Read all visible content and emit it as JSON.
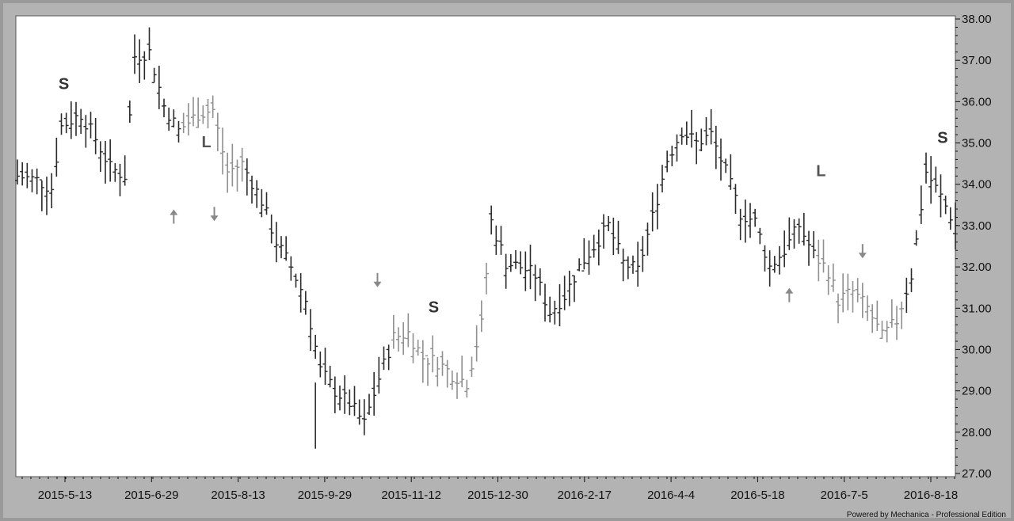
{
  "footer": "Powered by Mechanica - Professional Edition",
  "chart_data": {
    "type": "bar",
    "subtype": "ohlc-price-bars",
    "title": "",
    "xlabel": "",
    "ylabel": "",
    "ylim": [
      27.0,
      38.0
    ],
    "y_ticks": [
      "27.00",
      "28.00",
      "29.00",
      "30.00",
      "31.00",
      "32.00",
      "33.00",
      "34.00",
      "35.00",
      "36.00",
      "37.00",
      "38.00"
    ],
    "x_ticks": [
      "2015-5-13",
      "2015-6-29",
      "2015-8-13",
      "2015-9-29",
      "2015-11-12",
      "2015-12-30",
      "2016-2-17",
      "2016-4-4",
      "2016-5-18",
      "2016-7-5",
      "2016-8-18"
    ],
    "grid": false,
    "colors": {
      "dark_bars": "#2a2a2a",
      "light_bars": "#8f8f8f",
      "plot_bg": "#ffffff",
      "frame": "#b3b3b3"
    },
    "price_path": [
      [
        0,
        34.2
      ],
      [
        4,
        34.1
      ],
      [
        7,
        33.9
      ],
      [
        9,
        35.4
      ],
      [
        13,
        35.7
      ],
      [
        16,
        35.1
      ],
      [
        19,
        34.4
      ],
      [
        22,
        34.2
      ],
      [
        24,
        37.1
      ],
      [
        27,
        37.2
      ],
      [
        30,
        35.9
      ],
      [
        33,
        35.3
      ],
      [
        37,
        35.7
      ],
      [
        40,
        35.8
      ],
      [
        43,
        34.3
      ],
      [
        46,
        34.5
      ],
      [
        50,
        33.6
      ],
      [
        53,
        32.6
      ],
      [
        56,
        32.0
      ],
      [
        59,
        31.2
      ],
      [
        62,
        29.5
      ],
      [
        65,
        29.0
      ],
      [
        68,
        28.7
      ],
      [
        71,
        28.2
      ],
      [
        74,
        29.3
      ],
      [
        77,
        30.3
      ],
      [
        80,
        30.4
      ],
      [
        83,
        29.8
      ],
      [
        86,
        29.7
      ],
      [
        89,
        29.4
      ],
      [
        92,
        29.2
      ],
      [
        95,
        30.6
      ],
      [
        97,
        33.1
      ],
      [
        100,
        32.1
      ],
      [
        103,
        32.0
      ],
      [
        106,
        31.8
      ],
      [
        109,
        30.9
      ],
      [
        112,
        31.3
      ],
      [
        115,
        32.0
      ],
      [
        118,
        32.5
      ],
      [
        121,
        33.0
      ],
      [
        124,
        32.1
      ],
      [
        127,
        31.9
      ],
      [
        130,
        33.2
      ],
      [
        133,
        34.6
      ],
      [
        136,
        35.3
      ],
      [
        139,
        35.0
      ],
      [
        142,
        35.2
      ],
      [
        145,
        34.3
      ],
      [
        148,
        33.3
      ],
      [
        151,
        33.1
      ],
      [
        154,
        32.0
      ],
      [
        157,
        32.4
      ],
      [
        160,
        33.0
      ],
      [
        163,
        32.3
      ],
      [
        166,
        31.9
      ],
      [
        168,
        31.2
      ],
      [
        171,
        31.4
      ],
      [
        174,
        31.0
      ],
      [
        177,
        30.3
      ],
      [
        180,
        30.7
      ],
      [
        183,
        31.8
      ],
      [
        186,
        34.3
      ],
      [
        189,
        33.7
      ],
      [
        192,
        33.0
      ]
    ],
    "light_segments": [
      [
        34,
        46
      ],
      [
        77,
        96
      ],
      [
        164,
        181
      ]
    ],
    "markers": [
      {
        "type": "text",
        "label": "S",
        "x": 9.5,
        "y": 36.3
      },
      {
        "type": "text",
        "label": "L",
        "x": 38.7,
        "y": 34.9
      },
      {
        "type": "text",
        "label": "S",
        "x": 85.2,
        "y": 30.9
      },
      {
        "type": "text",
        "label": "L",
        "x": 164.5,
        "y": 34.2
      },
      {
        "type": "text",
        "label": "S",
        "x": 189.4,
        "y": 35.0
      },
      {
        "type": "arrow-up",
        "x": 32.0,
        "y": 33.2
      },
      {
        "type": "arrow-down",
        "x": 40.3,
        "y": 33.3
      },
      {
        "type": "arrow-down",
        "x": 73.7,
        "y": 31.7
      },
      {
        "type": "arrow-up",
        "x": 158.0,
        "y": 31.3
      },
      {
        "type": "arrow-down",
        "x": 173.0,
        "y": 32.4
      }
    ]
  }
}
